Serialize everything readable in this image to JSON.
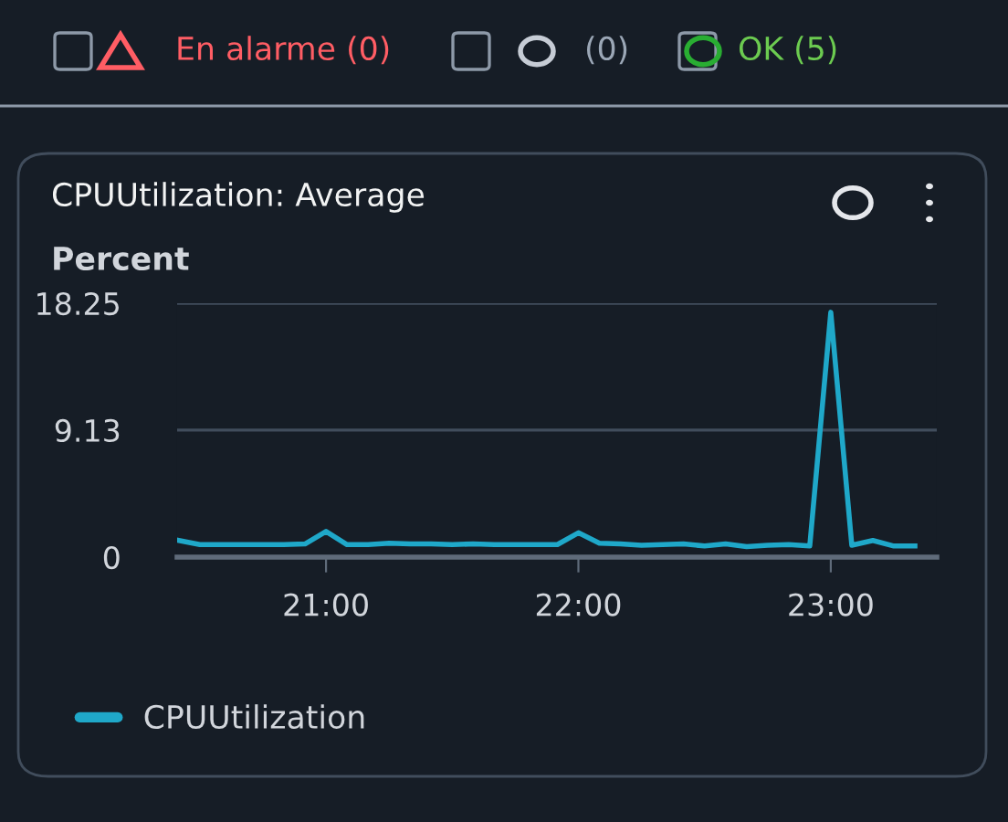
{
  "chart_data": {
    "type": "line",
    "title": "CPUUtilization: Average",
    "ylabel": "Percent",
    "annotations": [
      "En alarme (0)",
      "(0)",
      "OK (5)"
    ],
    "x": [
      20.4167,
      20.5,
      20.5833,
      20.6667,
      20.75,
      20.8333,
      20.9167,
      21.0,
      21.0833,
      21.1667,
      21.25,
      21.3333,
      21.4167,
      21.5,
      21.5833,
      21.6667,
      21.75,
      21.8333,
      21.9167,
      22.0,
      22.0833,
      22.1667,
      22.25,
      22.3333,
      22.4167,
      22.5,
      22.5833,
      22.6667,
      22.75,
      22.8333,
      22.9167,
      23.0,
      23.0833,
      23.1667,
      23.25,
      23.3333
    ],
    "series": [
      {
        "name": "CPUUtilization",
        "color": "#1fa8c9",
        "values": [
          1.2,
          0.9,
          0.9,
          0.9,
          0.9,
          0.9,
          0.95,
          1.85,
          0.9,
          0.9,
          1.0,
          0.95,
          0.95,
          0.9,
          0.95,
          0.9,
          0.9,
          0.9,
          0.9,
          1.75,
          1.0,
          0.95,
          0.85,
          0.9,
          0.95,
          0.8,
          0.95,
          0.75,
          0.85,
          0.9,
          0.8,
          17.6,
          0.85,
          1.2,
          0.8,
          0.8
        ]
      }
    ],
    "xlim": [
      20.41,
      23.42
    ],
    "ylim": [
      0,
      18.25
    ],
    "xticks": [
      {
        "value": 21,
        "label": "21:00"
      },
      {
        "value": 22,
        "label": "22:00"
      },
      {
        "value": 23,
        "label": "23:00"
      }
    ],
    "yticks": [
      0,
      9.13,
      18.25
    ],
    "grid": "y",
    "legend": "bottom left"
  }
}
